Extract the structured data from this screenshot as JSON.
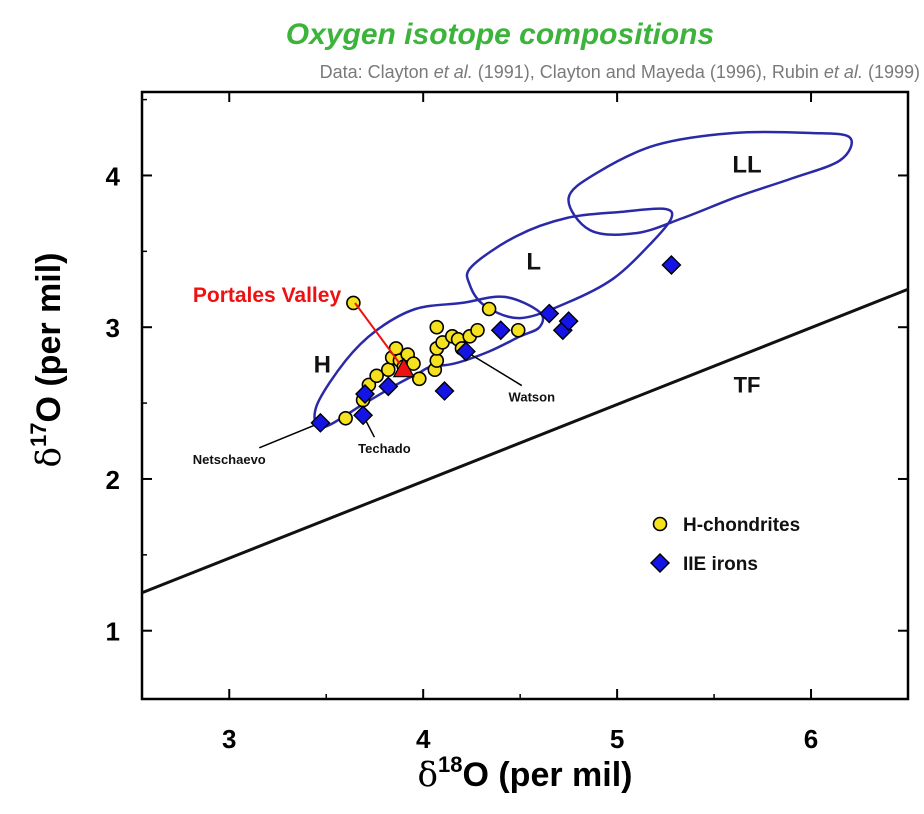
{
  "chart_data": {
    "type": "scatter",
    "title": "Oxygen isotope compositions",
    "subtitle": {
      "p1": "Data: Clayton ",
      "p2": "et al.",
      "p3": " (1991), Clayton and Mayeda (1996), Rubin ",
      "p4": "et al.",
      "p5": " (1999)"
    },
    "xlabel": {
      "greek": "δ",
      "sup": "18",
      "rest": "O (per mil)"
    },
    "ylabel": {
      "greek": "δ",
      "sup": "17",
      "rest": "O (per mil)"
    },
    "xlim": [
      2.55,
      6.5
    ],
    "ylim": [
      0.55,
      4.55
    ],
    "xticks": [
      3,
      4,
      5,
      6
    ],
    "yticks": [
      1,
      2,
      3,
      4
    ],
    "xtick_labels": [
      "3",
      "4",
      "5",
      "6"
    ],
    "ytick_labels": [
      "1",
      "2",
      "3",
      "4"
    ],
    "grid": false,
    "legend_position": "bottom-right",
    "colors": {
      "title": "#3cb43c",
      "subtitle": "#7a7a7a",
      "h_fill": "#f5e11e",
      "iie_fill": "#1414e6",
      "region_outline": "#2a2aa8",
      "portales": "#ee1111"
    },
    "series": [
      {
        "name": "H-chondrites",
        "marker": "circle",
        "points": [
          [
            3.64,
            3.16
          ],
          [
            3.6,
            2.4
          ],
          [
            3.69,
            2.52
          ],
          [
            3.72,
            2.62
          ],
          [
            3.76,
            2.68
          ],
          [
            3.82,
            2.72
          ],
          [
            3.84,
            2.8
          ],
          [
            3.86,
            2.86
          ],
          [
            3.88,
            2.78
          ],
          [
            3.9,
            2.74
          ],
          [
            3.92,
            2.82
          ],
          [
            3.95,
            2.76
          ],
          [
            3.98,
            2.66
          ],
          [
            4.06,
            2.72
          ],
          [
            4.07,
            2.78
          ],
          [
            4.07,
            2.86
          ],
          [
            4.07,
            3.0
          ],
          [
            4.1,
            2.9
          ],
          [
            4.15,
            2.94
          ],
          [
            4.18,
            2.92
          ],
          [
            4.2,
            2.86
          ],
          [
            4.24,
            2.94
          ],
          [
            4.28,
            2.98
          ],
          [
            4.34,
            3.12
          ],
          [
            4.49,
            2.98
          ]
        ]
      },
      {
        "name": "IIE irons",
        "marker": "diamond",
        "points": [
          [
            3.47,
            2.37
          ],
          [
            3.69,
            2.42
          ],
          [
            3.7,
            2.56
          ],
          [
            3.82,
            2.61
          ],
          [
            4.11,
            2.58
          ],
          [
            4.22,
            2.84
          ],
          [
            4.4,
            2.98
          ],
          [
            4.65,
            3.09
          ],
          [
            4.72,
            2.98
          ],
          [
            4.75,
            3.04
          ],
          [
            5.28,
            3.41
          ]
        ]
      }
    ],
    "special_point": {
      "label": "Portales Valley",
      "x": 3.9,
      "y": 2.72
    },
    "reference_line": {
      "label": "TF",
      "x": [
        2.55,
        6.5
      ],
      "y": [
        1.25,
        3.25
      ]
    },
    "regions": [
      {
        "label": "H",
        "outline": [
          [
            3.48,
            2.34
          ],
          [
            3.7,
            2.5
          ],
          [
            3.86,
            2.62
          ],
          [
            3.98,
            2.7
          ],
          [
            4.04,
            2.74
          ],
          [
            4.16,
            2.76
          ],
          [
            4.34,
            2.84
          ],
          [
            4.5,
            2.94
          ],
          [
            4.6,
            3.0
          ],
          [
            4.6,
            3.1
          ],
          [
            4.42,
            3.2
          ],
          [
            4.2,
            3.16
          ],
          [
            3.96,
            3.12
          ],
          [
            3.76,
            2.98
          ],
          [
            3.6,
            2.78
          ],
          [
            3.45,
            2.48
          ]
        ]
      },
      {
        "label": "L",
        "outline": [
          [
            4.25,
            3.4
          ],
          [
            4.48,
            3.6
          ],
          [
            4.74,
            3.72
          ],
          [
            5.02,
            3.76
          ],
          [
            5.24,
            3.78
          ],
          [
            5.28,
            3.72
          ],
          [
            5.18,
            3.56
          ],
          [
            4.98,
            3.32
          ],
          [
            4.74,
            3.16
          ],
          [
            4.5,
            3.06
          ],
          [
            4.32,
            3.14
          ],
          [
            4.24,
            3.28
          ]
        ]
      },
      {
        "label": "LL",
        "outline": [
          [
            4.75,
            3.85
          ],
          [
            4.9,
            4.02
          ],
          [
            5.2,
            4.2
          ],
          [
            5.6,
            4.28
          ],
          [
            6.0,
            4.28
          ],
          [
            6.2,
            4.25
          ],
          [
            6.15,
            4.1
          ],
          [
            5.9,
            3.98
          ],
          [
            5.62,
            3.86
          ],
          [
            5.34,
            3.72
          ],
          [
            5.1,
            3.62
          ],
          [
            4.86,
            3.64
          ]
        ]
      }
    ],
    "annotations": [
      {
        "label": "Netschaevo",
        "x": 3.47,
        "y": 2.37
      },
      {
        "label": "Techado",
        "x": 3.69,
        "y": 2.42
      },
      {
        "label": "Watson",
        "x": 4.22,
        "y": 2.84
      }
    ]
  }
}
